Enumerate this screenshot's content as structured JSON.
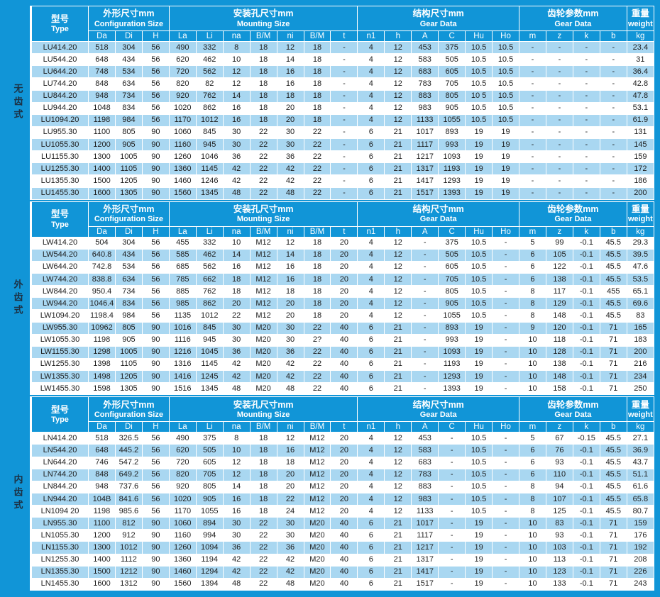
{
  "colors": {
    "accent_blue": "#1195d7",
    "row_light_blue": "#a9d7f1",
    "row_white": "#ffffff",
    "header_text": "#ffffff",
    "body_text": "#1c1c1c",
    "sidebar_text": "#1c3144"
  },
  "table": {
    "type_header": {
      "zh": "型号",
      "en": "Type"
    },
    "groups": [
      {
        "zh": "外形尺寸mm",
        "en": "Configuration Size",
        "span": 3
      },
      {
        "zh": "安装孔尺寸mm",
        "en": "Mounting Size",
        "span": 7
      },
      {
        "zh": "结构尺寸mm",
        "en": "Gear Data",
        "span": 6
      },
      {
        "zh": "齿轮参数mm",
        "en": "Gear Data",
        "span": 4
      },
      {
        "zh": "重量",
        "en": "weight",
        "span": 1
      }
    ],
    "columns": [
      "Da",
      "Di",
      "H",
      "La",
      "Li",
      "na",
      "B/M",
      "ni",
      "B/M",
      "t",
      "n1",
      "h",
      "A",
      "C",
      "Hu",
      "Ho",
      "m",
      "z",
      "k",
      "b",
      "kg"
    ],
    "sections": [
      {
        "label": "无齿式",
        "first_row_shaded": true,
        "rows": [
          [
            "LU414.20",
            "518",
            "304",
            "56",
            "490",
            "332",
            "8",
            "18",
            "12",
            "18",
            "-",
            "4",
            "12",
            "453",
            "375",
            "10.5",
            "10.5",
            "-",
            "-",
            "-",
            "-",
            "23.4"
          ],
          [
            "LU544.20",
            "648",
            "434",
            "56",
            "620",
            "462",
            "10",
            "18",
            "14",
            "18",
            "-",
            "4",
            "12",
            "583",
            "505",
            "10.5",
            "10.5",
            "-",
            "-",
            "-",
            "-",
            "31"
          ],
          [
            "LU644.20",
            "748",
            "534",
            "56",
            "720",
            "562",
            "12",
            "18",
            "16",
            "18",
            "-",
            "4",
            "12",
            "683",
            "605",
            "10.5",
            "10.5",
            "-",
            "-",
            "-",
            "-",
            "36.4"
          ],
          [
            "LU744.20",
            "848",
            "634",
            "56",
            "820",
            "82",
            "12",
            "18",
            "16",
            "18",
            "-",
            "4",
            "12",
            "783",
            "705",
            "10.5",
            "10.5",
            "-",
            "-",
            "-",
            "-",
            "42.8"
          ],
          [
            "LU844.20",
            "948",
            "734",
            "56",
            "920",
            "762",
            "14",
            "18",
            "18",
            "18",
            "-",
            "4",
            "12",
            "883",
            "805",
            "10 5",
            "10.5",
            "-",
            "-",
            "-",
            "-",
            "47.8"
          ],
          [
            "LU944.20",
            "1048",
            "834",
            "56",
            "1020",
            "862",
            "16",
            "18",
            "20",
            "18",
            "-",
            "4",
            "12",
            "983",
            "905",
            "10.5",
            "10.5",
            "-",
            "-",
            "-",
            "-",
            "53.1"
          ],
          [
            "LU1094.20",
            "1198",
            "984",
            "56",
            "1170",
            "1012",
            "16",
            "18",
            "20",
            "18",
            "-",
            "4",
            "12",
            "1133",
            "1055",
            "10.5",
            "10.5",
            "-",
            "-",
            "-",
            "-",
            "61.9"
          ],
          [
            "LU955.30",
            "1100",
            "805",
            "90",
            "1060",
            "845",
            "30",
            "22",
            "30",
            "22",
            "-",
            "6",
            "21",
            "1017",
            "893",
            "19",
            "19",
            "-",
            "-",
            "-",
            "-",
            "131"
          ],
          [
            "LU1055.30",
            "1200",
            "905",
            "90",
            "1160",
            "945",
            "30",
            "22",
            "30",
            "22",
            "-",
            "6",
            "21",
            "1117",
            "993",
            "19",
            "19",
            "-",
            "-",
            "-",
            "-",
            "145"
          ],
          [
            "LU1155.30",
            "1300",
            "1005",
            "90",
            "1260",
            "1046",
            "36",
            "22",
            "36",
            "22",
            "-",
            "6",
            "21",
            "1217",
            "1093",
            "19",
            "19",
            "-",
            "-",
            "-",
            "-",
            "159"
          ],
          [
            "LU1255.30",
            "1400",
            "1105",
            "90",
            "1360",
            "1145",
            "42",
            "22",
            "42",
            "22",
            "-",
            "6",
            "21",
            "1317",
            "1193",
            "19",
            "19",
            "-",
            "-",
            "-",
            "-",
            "172"
          ],
          [
            "LU1355.30",
            "1500",
            "1205",
            "90",
            "1460",
            "1246",
            "42",
            "22",
            "42",
            "22",
            "-",
            "6",
            "21",
            "1417",
            "1293",
            "19",
            "19",
            "-",
            "-",
            "-",
            "-",
            "186"
          ],
          [
            "LU1455.30",
            "1600",
            "1305",
            "90",
            "1560",
            "1345",
            "48",
            "22",
            "48",
            "22",
            "-",
            "6",
            "21",
            "1517",
            "1393",
            "19",
            "19",
            "-",
            "-",
            "-",
            "-",
            "200"
          ]
        ]
      },
      {
        "label": "外齿式",
        "first_row_shaded": false,
        "rows": [
          [
            "LW414.20",
            "504",
            "304",
            "56",
            "455",
            "332",
            "10",
            "M12",
            "12",
            "18",
            "20",
            "4",
            "12",
            "-",
            "375",
            "10.5",
            "-",
            "5",
            "99",
            "-0.1",
            "45.5",
            "29.3"
          ],
          [
            "LW544.20",
            "640.8",
            "434",
            "56",
            "585",
            "462",
            "14",
            "M12",
            "14",
            "18",
            "20",
            "4",
            "12",
            "-",
            "505",
            "10.5",
            "-",
            "6",
            "105",
            "-0.1",
            "45.5",
            "39.5"
          ],
          [
            "LW644.20",
            "742.8",
            "534",
            "56",
            "685",
            "562",
            "16",
            "M12",
            "16",
            "18",
            "20",
            "4",
            "12",
            "-",
            "605",
            "10.5",
            "-",
            "6",
            "122",
            "-0.1",
            "45.5",
            "47.6"
          ],
          [
            "LW744.20",
            "838.8",
            "634",
            "56",
            "785",
            "662",
            "18",
            "M12",
            "16",
            "18",
            "20",
            "4",
            "12",
            "-",
            "705",
            "10.5",
            "-",
            "6",
            "138",
            "-0.1",
            "45.5",
            "53.5"
          ],
          [
            "LW844.20",
            "950.4",
            "734",
            "56",
            "885",
            "762",
            "18",
            "M12",
            "18",
            "18",
            "20",
            "4",
            "12",
            "-",
            "805",
            "10.5",
            "-",
            "8",
            "117",
            "-0.1",
            "455",
            "65.1"
          ],
          [
            "LW944.20",
            "1046.4",
            "834",
            "56",
            "985",
            "862",
            "20",
            "M12",
            "20",
            "18",
            "20",
            "4",
            "12",
            "-",
            "905",
            "10.5",
            "-",
            "8",
            "129",
            "-0.1",
            "45.5",
            "69.6"
          ],
          [
            "LW1094.20",
            "1198.4",
            "984",
            "56",
            "1135",
            "1012",
            "22",
            "M12",
            "20",
            "18",
            "20",
            "4",
            "12",
            "-",
            "1055",
            "10.5",
            "-",
            "8",
            "148",
            "-0.1",
            "45.5",
            "83"
          ],
          [
            "LW955.30",
            "10962",
            "805",
            "90",
            "1016",
            "845",
            "30",
            "M20",
            "30",
            "22",
            "40",
            "6",
            "21",
            "-",
            "893",
            "19",
            "-",
            "9",
            "120",
            "-0.1",
            "71",
            "165"
          ],
          [
            "LW1055.30",
            "1198",
            "905",
            "90",
            "1116",
            "945",
            "30",
            "M20",
            "30",
            "2?",
            "40",
            "6",
            "21",
            "-",
            "993",
            "19",
            "-",
            "10",
            "118",
            "-0.1",
            "71",
            "183"
          ],
          [
            "LW1155.30",
            "1298",
            "1005",
            "90",
            "1216",
            "1045",
            "36",
            "M20",
            "36",
            "22",
            "40",
            "6",
            "21",
            "-",
            "1093",
            "19",
            "-",
            "10",
            "128",
            "-0.1",
            "71",
            "200"
          ],
          [
            "LW1255.30",
            "1398",
            "1105",
            "90",
            "1316",
            "1145",
            "42",
            "M20",
            "42",
            "22",
            "40",
            "6",
            "21",
            "-",
            "1193",
            "19",
            "-",
            "10",
            "138",
            "-0.1",
            "71",
            "216"
          ],
          [
            "LW1355.30",
            "1498",
            "1205",
            "90",
            "1416",
            "1245",
            "42",
            "M20",
            "42",
            "22",
            "40",
            "6",
            "21",
            "-",
            "1293",
            "19",
            "-",
            "10",
            "148",
            "-0.1",
            "71",
            "234"
          ],
          [
            "LW1455.30",
            "1598",
            "1305",
            "90",
            "1516",
            "1345",
            "48",
            "M20",
            "48",
            "22",
            "40",
            "6",
            "21",
            "-",
            "1393",
            "19",
            "-",
            "10",
            "158",
            "-0.1",
            "71",
            "250"
          ]
        ]
      },
      {
        "label": "内齿式",
        "first_row_shaded": false,
        "rows": [
          [
            "LN414.20",
            "518",
            "326.5",
            "56",
            "490",
            "375",
            "8",
            "18",
            "12",
            "M12",
            "20",
            "4",
            "12",
            "453",
            "-",
            "10.5",
            "-",
            "5",
            "67",
            "-0.15",
            "45.5",
            "27.1"
          ],
          [
            "LN544.20",
            "648",
            "445.2",
            "56",
            "620",
            "505",
            "10",
            "18",
            "16",
            "M12",
            "20",
            "4",
            "12",
            "583",
            "-",
            "10.5",
            "-",
            "6",
            "76",
            "-0.1",
            "45.5",
            "36.9"
          ],
          [
            "LN644.20",
            "746",
            "547.2",
            "56",
            "720",
            "605",
            "12",
            "18",
            "18",
            "M12",
            "20",
            "4",
            "12",
            "683",
            "-",
            "10.5",
            "-",
            "6",
            "93",
            "-0.1",
            "45.5",
            "43.7"
          ],
          [
            "LN744.20",
            "848",
            "649.2",
            "56",
            "820",
            "705",
            "12",
            "18",
            "20",
            "M12",
            "20",
            "4",
            "12",
            "783",
            "-",
            "10.5",
            "-",
            "6",
            "110",
            "-0.1",
            "45.5",
            "51.1"
          ],
          [
            "LN844.20",
            "948",
            "737.6",
            "56",
            "920",
            "805",
            "14",
            "18",
            "20",
            "M12",
            "20",
            "4",
            "12",
            "883",
            "-",
            "10.5",
            "-",
            "8",
            "94",
            "-0.1",
            "45.5",
            "61.6"
          ],
          [
            "LN944.20",
            "104B",
            "841.6",
            "56",
            "1020",
            "905",
            "16",
            "18",
            "22",
            "M12",
            "20",
            "4",
            "12",
            "983",
            "-",
            "10.5",
            "-",
            "8",
            "107",
            "-0.1",
            "45.5",
            "65.8"
          ],
          [
            "LN1094 20",
            "1198",
            "985.6",
            "56",
            "1170",
            "1055",
            "16",
            "18",
            "24",
            "M12",
            "20",
            "4",
            "12",
            "1133",
            "-",
            "10.5",
            "-",
            "8",
            "125",
            "-0.1",
            "45.5",
            "80.7"
          ],
          [
            "LN955.30",
            "1100",
            "812",
            "90",
            "1060",
            "894",
            "30",
            "22",
            "30",
            "M20",
            "40",
            "6",
            "21",
            "1017",
            "-",
            "19",
            "-",
            "10",
            "83",
            "-0.1",
            "71",
            "159"
          ],
          [
            "LN1055.30",
            "1200",
            "912",
            "90",
            "1160",
            "994",
            "30",
            "22",
            "30",
            "M20",
            "40",
            "6",
            "21",
            "1117",
            "-",
            "19",
            "-",
            "10",
            "93",
            "-0.1",
            "71",
            "176"
          ],
          [
            "LN1155.30",
            "1300",
            "1012",
            "90",
            "1260",
            "1094",
            "36",
            "22",
            "36",
            "M20",
            "40",
            "6",
            "21",
            "1217",
            "-",
            "19",
            "-",
            "10",
            "103",
            "-0.1",
            "71",
            "192"
          ],
          [
            "LN1255.30",
            "1400",
            "1112",
            "90",
            "1360",
            "1194",
            "42",
            "22",
            "42",
            "M20",
            "40",
            "6",
            "21",
            "1317",
            "-",
            "19",
            "-",
            "10",
            "113",
            "-0.1",
            "71",
            "208"
          ],
          [
            "LN1355.30",
            "1500",
            "1212",
            "90",
            "1460",
            "1294",
            "42",
            "22",
            "42",
            "M20",
            "40",
            "6",
            "21",
            "1417",
            "-",
            "19",
            "-",
            "10",
            "123",
            "-0.1",
            "71",
            "226"
          ],
          [
            "LN1455.30",
            "1600",
            "1312",
            "90",
            "1560",
            "1394",
            "48",
            "22",
            "48",
            "M20",
            "40",
            "6",
            "21",
            "1517",
            "-",
            "19",
            "-",
            "10",
            "133",
            "-0.1",
            "71",
            "243"
          ]
        ]
      }
    ]
  }
}
